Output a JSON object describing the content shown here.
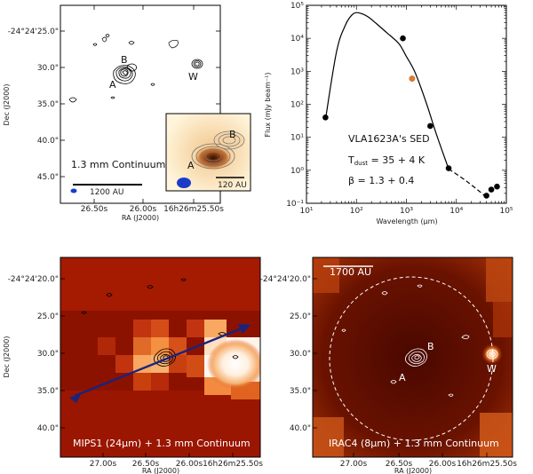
{
  "panel_tl": {
    "ra_ticks": [
      "26.50s",
      "26.00s",
      "16h26m25.50s"
    ],
    "dec_ticks": [
      "-24°24'25.0\"",
      "30.0\"",
      "35.0\"",
      "40.0\"",
      "45.0\""
    ],
    "xlabel": "RA (J2000)",
    "ylabel": "Dec (J2000)",
    "legend": "1.3 mm Continuum",
    "scale_bar": "1200 AU",
    "sources": {
      "a": "A",
      "b": "B",
      "w": "W"
    },
    "inset": {
      "scale_bar": "120 AU",
      "a": "A",
      "b": "B"
    }
  },
  "panel_tr": {
    "title": "VLA1623A's SED",
    "tdust": "T_dust = 35 + 4 K",
    "tdust_main": "T",
    "tdust_sub": "dust",
    "tdust_rest": " = 35 + 4 K",
    "beta": "β = 1.3 + 0.4",
    "xlabel": "Wavelength (μm)",
    "ylabel": "Flux (mJy beam⁻¹)",
    "xticks": [
      "10¹",
      "10²",
      "10³",
      "10⁴",
      "10⁵"
    ],
    "yticks": [
      "10⁻¹",
      "10⁰",
      "10¹",
      "10²",
      "10³",
      "10⁴",
      "10⁵"
    ]
  },
  "panel_bl": {
    "caption": "MIPS1 (24μm) + 1.3 mm Continuum",
    "ra_ticks": [
      "27.00s",
      "26.50s",
      "26.00s",
      "16h26m25.50s"
    ],
    "dec_ticks": [
      "-24°24'20.0\"",
      "25.0\"",
      "30.0\"",
      "35.0\"",
      "40.0\""
    ],
    "xlabel": "RA (J2000)",
    "ylabel": "Dec (J2000)"
  },
  "panel_br": {
    "caption": "IRAC4 (8μm) + 1.3 mm Continuum",
    "scale_bar": "1700 AU",
    "ra_ticks": [
      "27.00s",
      "26.50s",
      "26.00s",
      "16h26m25.50s"
    ],
    "dec_ticks": [
      "-24°24'20.0\"",
      "25.0\"",
      "30.0\"",
      "35.0\"",
      "40.0\""
    ],
    "xlabel": "RA (J2000)",
    "sources": {
      "a": "A",
      "b": "B",
      "w": "W"
    }
  },
  "chart_data": {
    "type": "scatter",
    "title": "VLA1623A's SED",
    "xlabel": "Wavelength (μm)",
    "ylabel": "Flux (mJy beam⁻¹)",
    "xscale": "log",
    "yscale": "log",
    "xlim": [
      10,
      100000
    ],
    "ylim": [
      0.1,
      100000
    ],
    "series": [
      {
        "name": "observed",
        "x": [
          24,
          850,
          1300,
          3000,
          7000,
          40000,
          50000,
          65000
        ],
        "y": [
          40,
          10000,
          600,
          22,
          1.15,
          0.17,
          0.26,
          0.32
        ]
      },
      {
        "name": "highlight_1.3mm",
        "x": [
          1300
        ],
        "y": [
          600
        ],
        "color": "#e37a2a"
      }
    ],
    "fit_solid": {
      "x": [
        24,
        40,
        60,
        80,
        100,
        130,
        170,
        250,
        400,
        700,
        1000,
        1500,
        2500,
        4000,
        7000
      ],
      "y": [
        35,
        4000,
        25000,
        50000,
        60000,
        55000,
        45000,
        28000,
        15000,
        7000,
        2800,
        900,
        110,
        12,
        1.1
      ]
    },
    "fit_dashed": {
      "x": [
        7000,
        15000,
        30000,
        40000
      ],
      "y": [
        1.1,
        0.5,
        0.22,
        0.15
      ]
    }
  }
}
